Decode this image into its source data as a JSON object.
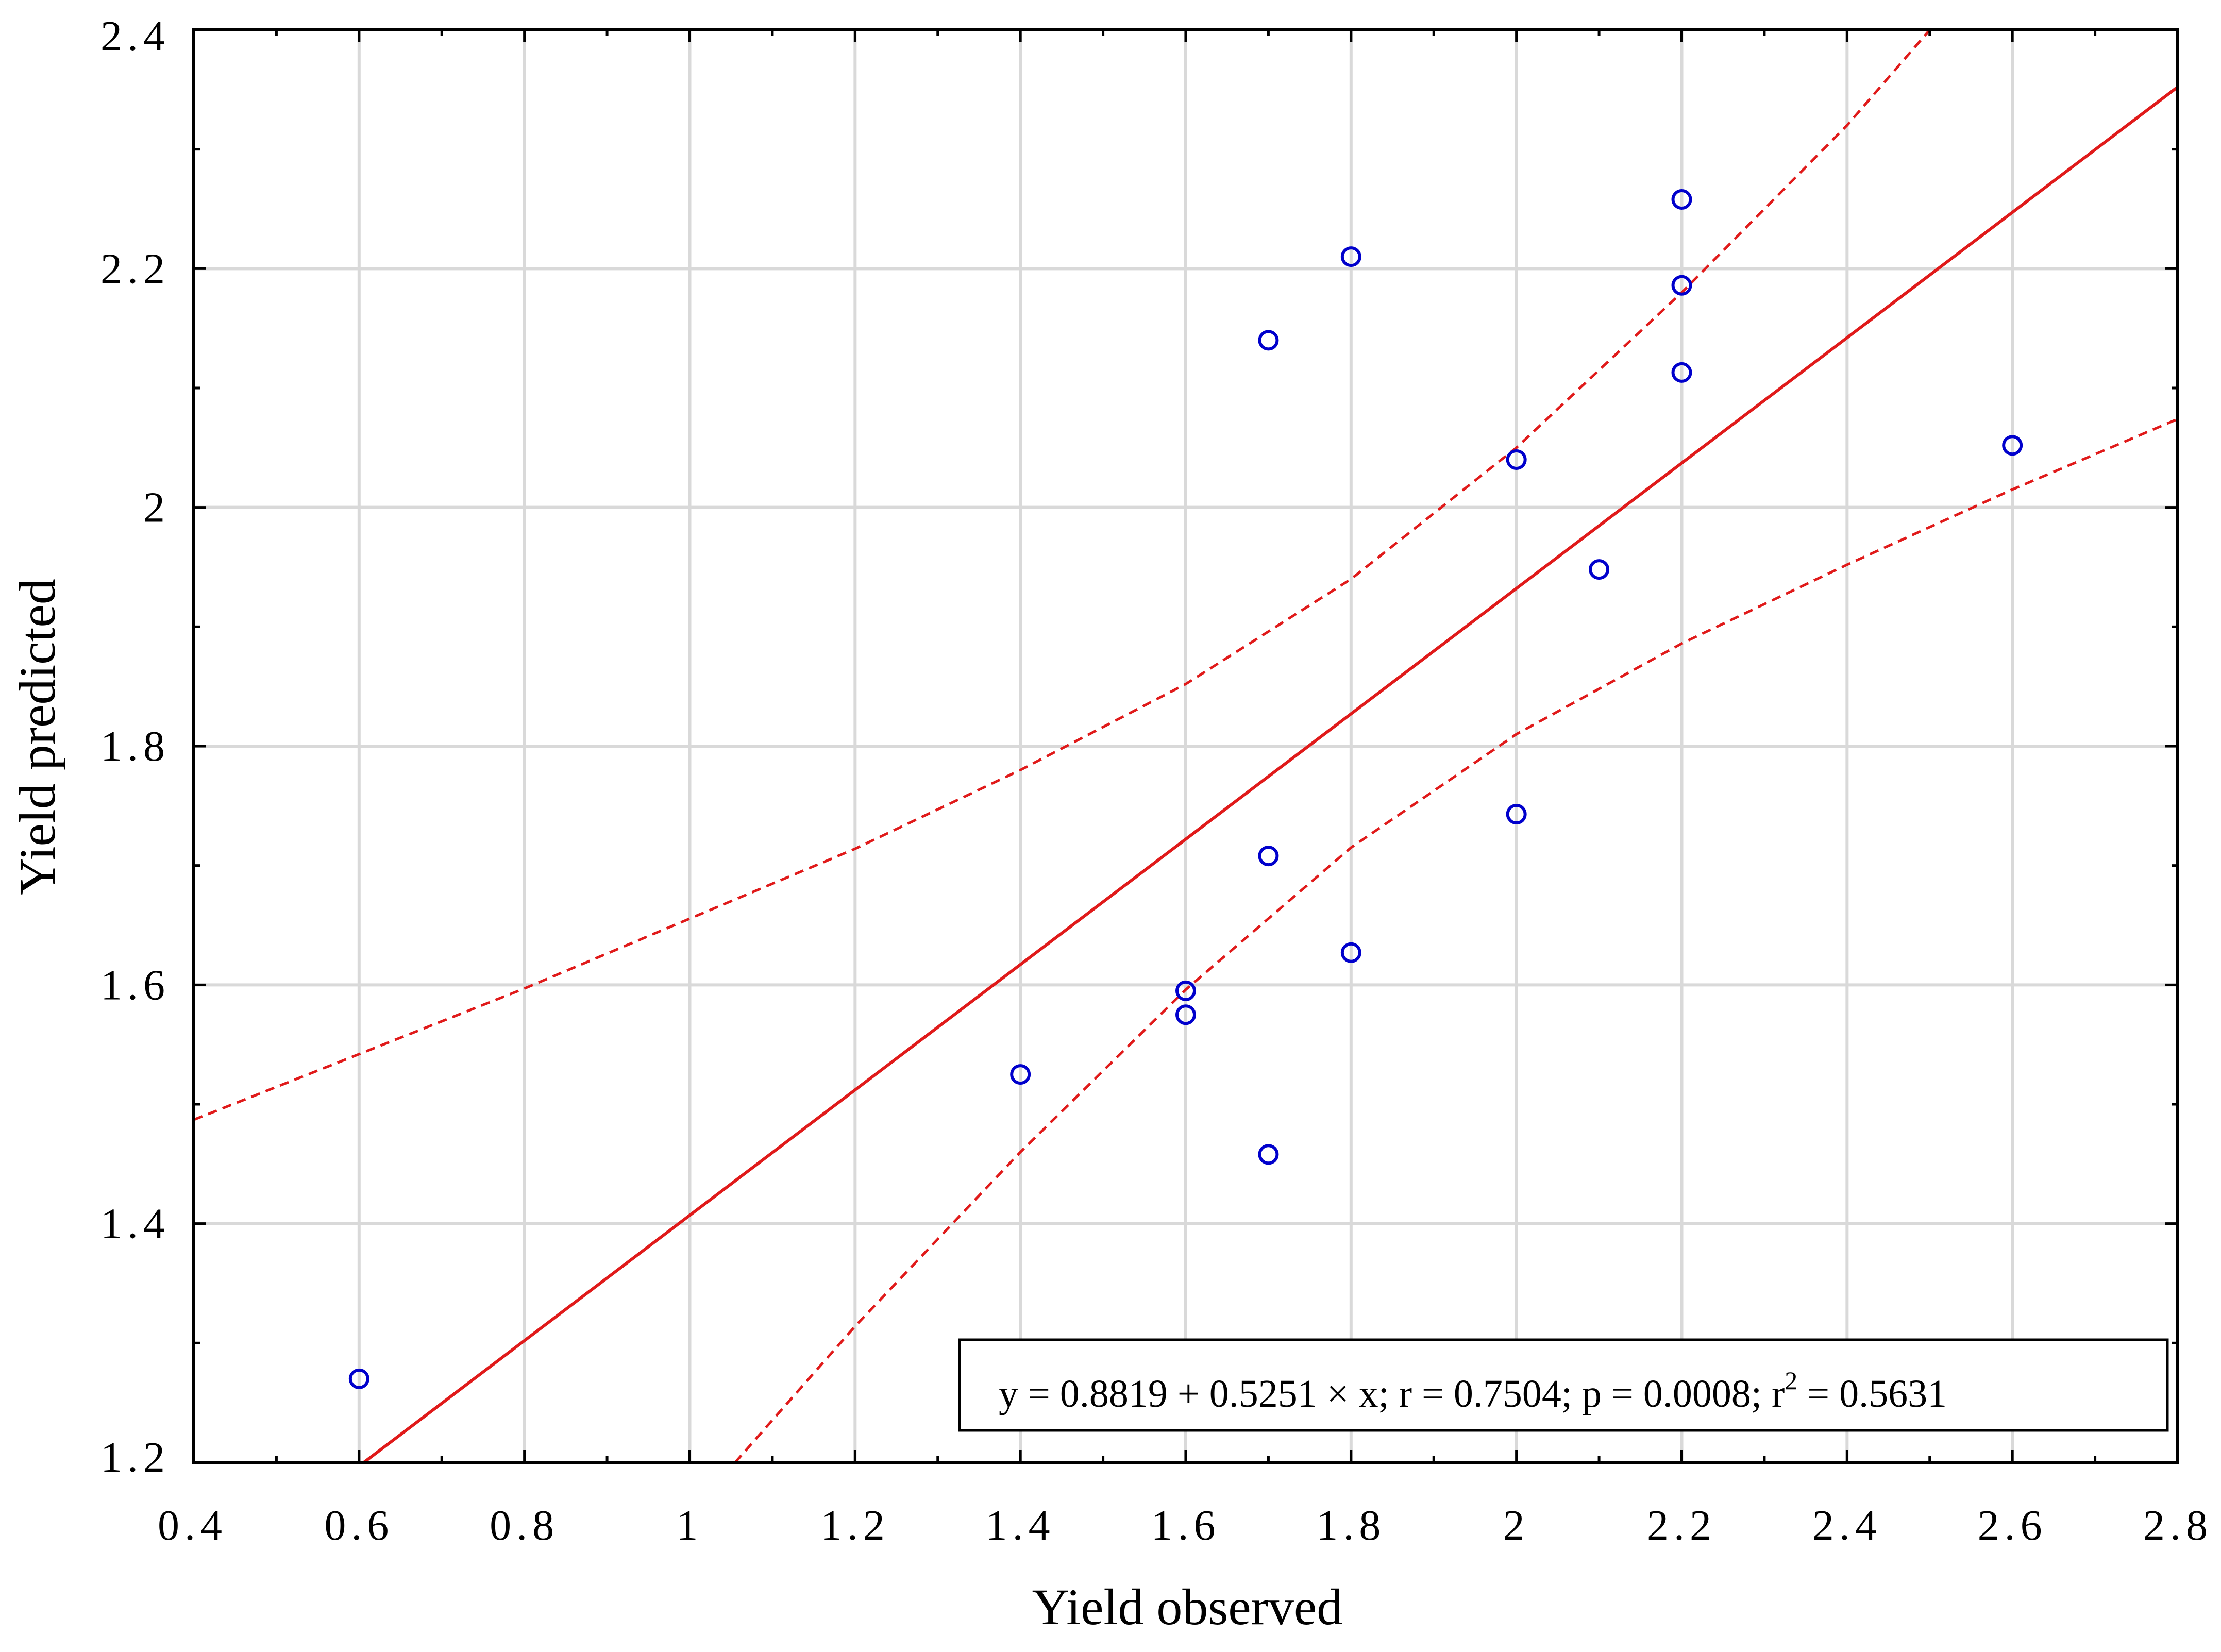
{
  "chart_data": {
    "type": "scatter",
    "title": "",
    "xlabel": "Yield observed",
    "ylabel": "Yield predicted",
    "xlim": [
      0.4,
      2.8
    ],
    "ylim": [
      1.2,
      2.4
    ],
    "x_ticks": [
      0.4,
      0.6,
      0.8,
      1.0,
      1.2,
      1.4,
      1.6,
      1.8,
      2.0,
      2.2,
      2.4,
      2.6,
      2.8
    ],
    "x_tick_labels": [
      "0.4",
      "0.6",
      "0.8",
      "1",
      "1.2",
      "1.4",
      "1.6",
      "1.8",
      "2",
      "2.2",
      "2.4",
      "2.6",
      "2.8"
    ],
    "y_ticks": [
      1.2,
      1.4,
      1.6,
      1.8,
      2.0,
      2.2,
      2.4
    ],
    "y_tick_labels": [
      "1.2",
      "1.4",
      "1.6",
      "1.8",
      "2",
      "2.2",
      "2.4"
    ],
    "grid": true,
    "points": [
      {
        "x": 0.6,
        "y": 1.27
      },
      {
        "x": 1.4,
        "y": 1.525
      },
      {
        "x": 1.6,
        "y": 1.595
      },
      {
        "x": 1.6,
        "y": 1.575
      },
      {
        "x": 1.7,
        "y": 1.458
      },
      {
        "x": 1.7,
        "y": 1.708
      },
      {
        "x": 1.7,
        "y": 2.14
      },
      {
        "x": 1.8,
        "y": 1.627
      },
      {
        "x": 1.8,
        "y": 2.21
      },
      {
        "x": 2.0,
        "y": 1.743
      },
      {
        "x": 2.0,
        "y": 2.04
      },
      {
        "x": 2.1,
        "y": 1.948
      },
      {
        "x": 2.2,
        "y": 2.258
      },
      {
        "x": 2.2,
        "y": 2.186
      },
      {
        "x": 2.2,
        "y": 2.113
      },
      {
        "x": 2.6,
        "y": 2.052
      }
    ],
    "regression": {
      "intercept": 0.8819,
      "slope": 0.5251
    },
    "confidence_band": {
      "upper": [
        [
          0.4,
          1.487
        ],
        [
          0.8,
          1.597
        ],
        [
          1.2,
          1.714
        ],
        [
          1.4,
          1.78
        ],
        [
          1.6,
          1.852
        ],
        [
          1.8,
          1.94
        ],
        [
          2.0,
          2.05
        ],
        [
          2.2,
          2.18
        ],
        [
          2.4,
          2.32
        ],
        [
          2.5,
          2.4
        ]
      ],
      "lower": [
        [
          1.055,
          1.2
        ],
        [
          1.2,
          1.314
        ],
        [
          1.4,
          1.46
        ],
        [
          1.6,
          1.596
        ],
        [
          1.8,
          1.715
        ],
        [
          2.0,
          1.81
        ],
        [
          2.2,
          1.886
        ],
        [
          2.4,
          1.952
        ],
        [
          2.6,
          2.015
        ],
        [
          2.8,
          2.074
        ]
      ]
    },
    "annotation": {
      "equation": "y = 0.8819 + 0.5251 × x;  r = 0.7504; p = 0.0008; r",
      "r2_exponent": "2",
      "r2_value": " = 0.5631",
      "position": "bottom-right"
    },
    "colors": {
      "points": "#0000cc",
      "fit": "#e01a1a",
      "grid": "#d9d9d9",
      "axis": "#000000"
    }
  }
}
